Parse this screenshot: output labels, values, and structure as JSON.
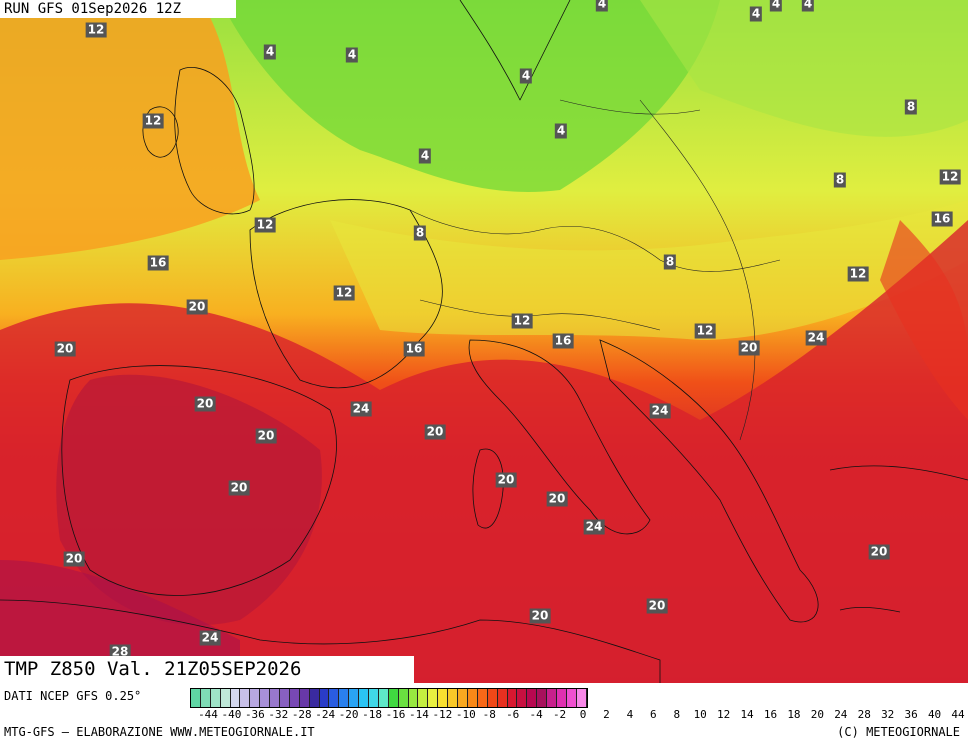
{
  "header": {
    "run_title": "RUN GFS 01Sep2026 12Z"
  },
  "map_title": "TMP Z850 Val. 21Z05SEP2026",
  "footer": {
    "source": "DATI NCEP GFS 0.25°",
    "credit": "MTG-GFS – ELABORAZIONE WWW.METEOGIORNALE.IT",
    "copyright": "(C) METEOGIORNALE"
  },
  "legend": {
    "ticks": [
      "-44",
      "-40",
      "-36",
      "-32",
      "-28",
      "-24",
      "-20",
      "-18",
      "-16",
      "-14",
      "-12",
      "-10",
      "-8",
      "-6",
      "-4",
      "-2",
      "0",
      "2",
      "4",
      "6",
      "8",
      "10",
      "12",
      "14",
      "16",
      "18",
      "20",
      "24",
      "28",
      "32",
      "36",
      "40",
      "44"
    ],
    "colors": [
      "#5fd6a4",
      "#7fdcb6",
      "#9fe4c8",
      "#bfe8d8",
      "#d4d8ee",
      "#c8c0e8",
      "#b8a8e0",
      "#a890d8",
      "#9878cc",
      "#8860c0",
      "#7848b4",
      "#6838a8",
      "#3a2aa0",
      "#2a3cc8",
      "#2a5ce0",
      "#2a80ee",
      "#2aa4f4",
      "#2ac4f4",
      "#40d8e8",
      "#5ee8c8",
      "#40d840",
      "#6ae040",
      "#98e840",
      "#c4ee40",
      "#e8f040",
      "#f8e030",
      "#f8c828",
      "#f8a820",
      "#f88818",
      "#f86818",
      "#f04818",
      "#e83020",
      "#d81830",
      "#c81040",
      "#b80850",
      "#a8105c",
      "#c8208c",
      "#e030b0",
      "#f050d0",
      "#f888e8"
    ]
  },
  "contour_labels": [
    {
      "v": "12"
    },
    {
      "v": "4"
    },
    {
      "v": "4"
    },
    {
      "v": "4"
    },
    {
      "v": "4"
    },
    {
      "v": "4"
    },
    {
      "v": "4"
    },
    {
      "v": "4"
    },
    {
      "v": "4"
    },
    {
      "v": "12"
    },
    {
      "v": "4"
    },
    {
      "v": "8"
    },
    {
      "v": "8"
    },
    {
      "v": "12"
    },
    {
      "v": "12"
    },
    {
      "v": "8"
    },
    {
      "v": "16"
    },
    {
      "v": "8"
    },
    {
      "v": "12"
    },
    {
      "v": "16"
    },
    {
      "v": "12"
    },
    {
      "v": "20"
    },
    {
      "v": "12"
    },
    {
      "v": "16"
    },
    {
      "v": "12"
    },
    {
      "v": "16"
    },
    {
      "v": "20"
    },
    {
      "v": "20"
    },
    {
      "v": "24"
    },
    {
      "v": "20"
    },
    {
      "v": "24"
    },
    {
      "v": "20"
    },
    {
      "v": "20"
    },
    {
      "v": "24"
    },
    {
      "v": "20"
    },
    {
      "v": "20"
    },
    {
      "v": "20"
    },
    {
      "v": "24"
    },
    {
      "v": "20"
    },
    {
      "v": "20"
    },
    {
      "v": "24"
    },
    {
      "v": "28"
    },
    {
      "v": "20"
    },
    {
      "v": "20"
    }
  ]
}
